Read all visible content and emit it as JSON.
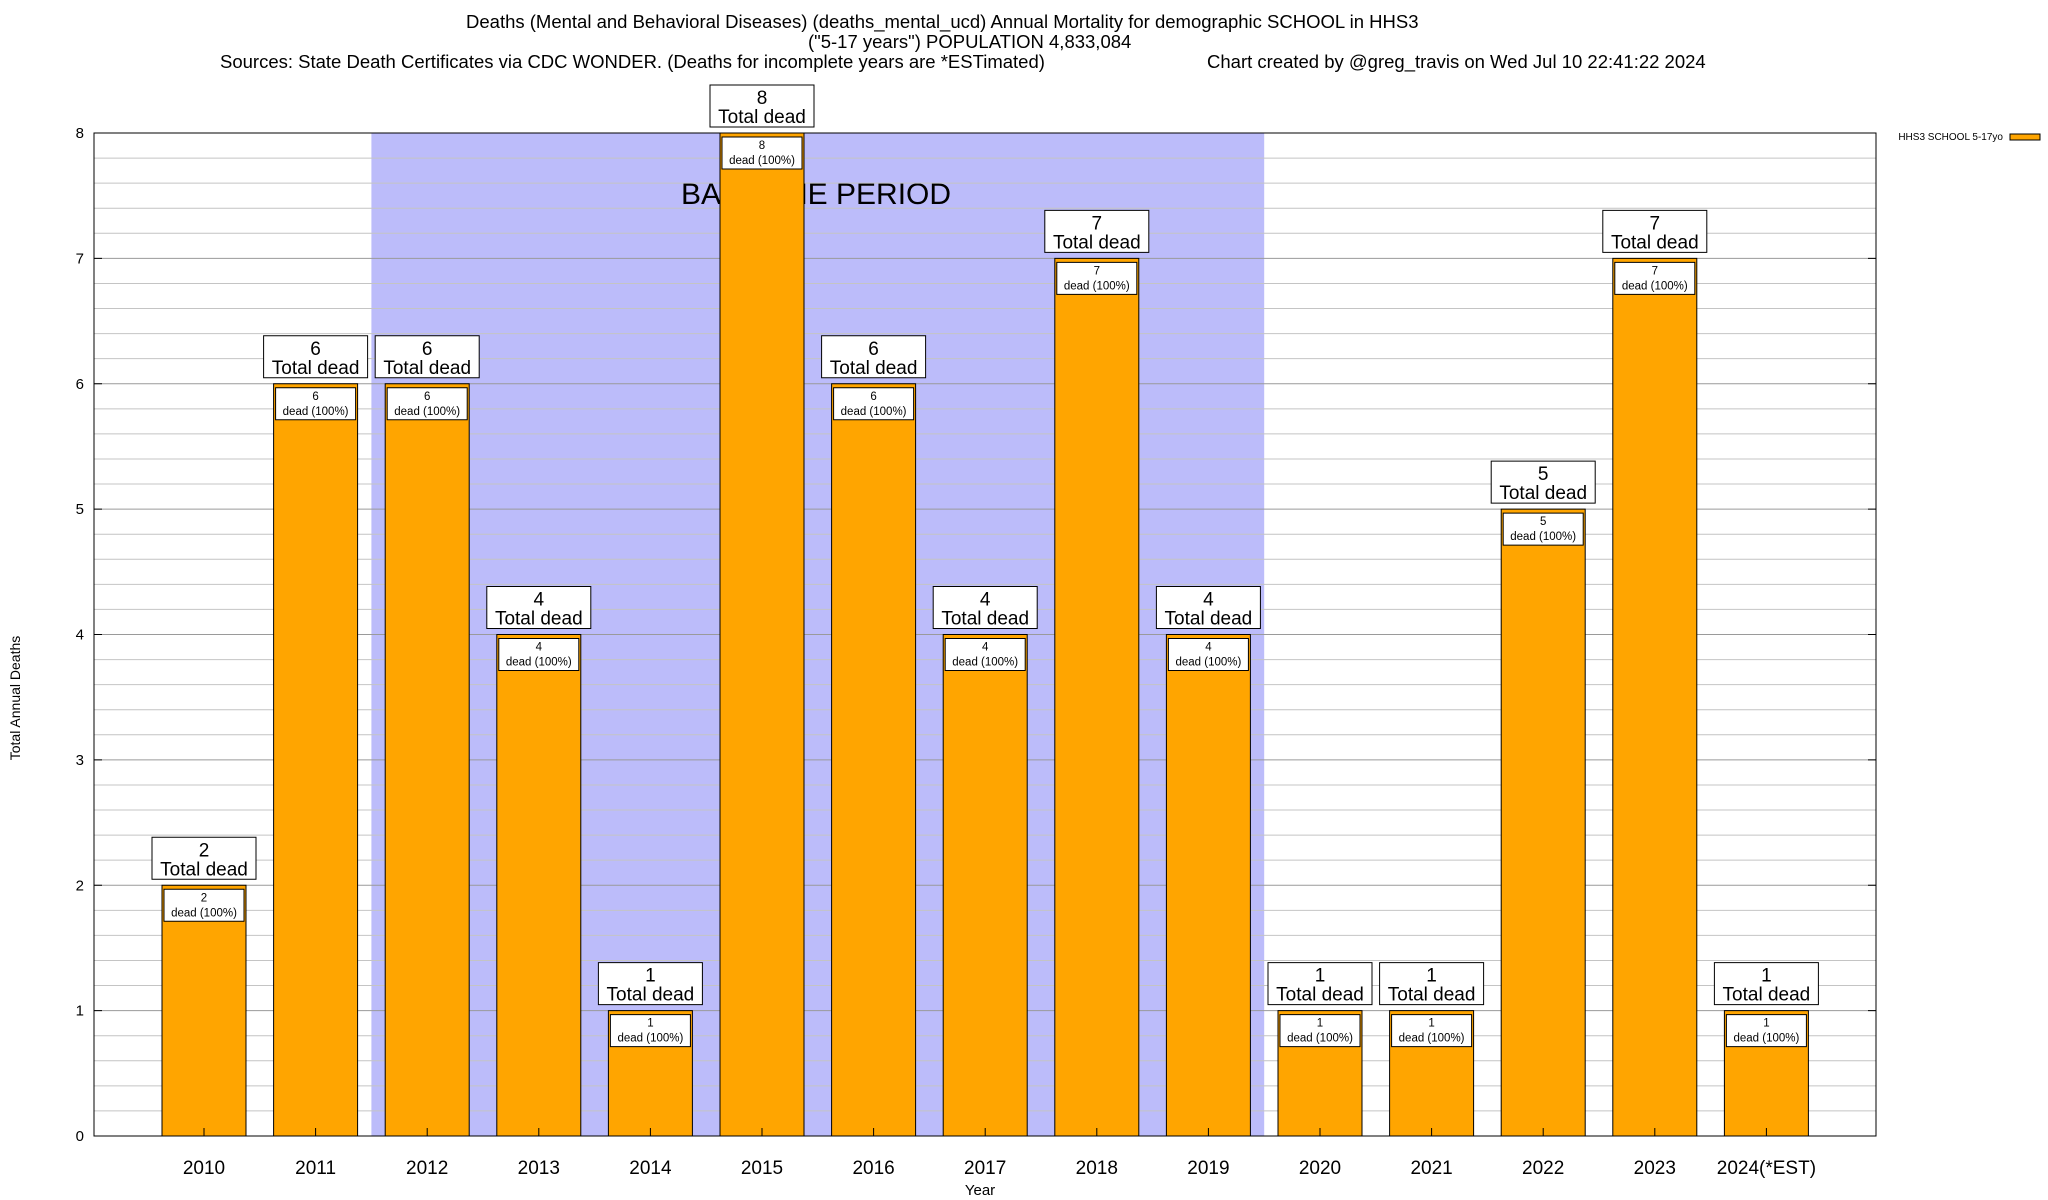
{
  "header": {
    "title_line1": "Deaths (Mental and Behavioral Diseases) (deaths_mental_ucd) Annual Mortality for demographic SCHOOL in HHS3",
    "title_line2": "(\"5-17 years\") POPULATION 4,833,084",
    "sources": "Sources: State Death Certificates via CDC WONDER. (Deaths for incomplete years are *ESTimated)",
    "credit": "Chart created by @greg_travis on Wed Jul 10 22:41:22 2024"
  },
  "chart_data": {
    "type": "bar",
    "xlabel": "Year",
    "ylabel": "Total Annual Deaths",
    "ylim": [
      0,
      8
    ],
    "yticks": [
      0,
      1,
      2,
      3,
      4,
      5,
      6,
      7,
      8
    ],
    "minor_grid_step": 0.2,
    "categories": [
      "2010",
      "2011",
      "2012",
      "2013",
      "2014",
      "2015",
      "2016",
      "2017",
      "2018",
      "2019",
      "2020",
      "2021",
      "2022",
      "2023",
      "2024(*EST)"
    ],
    "series": [
      {
        "name": "HHS3 SCHOOL 5-17yo",
        "color": "#FFA500",
        "values": [
          2,
          6,
          6,
          4,
          1,
          8,
          6,
          4,
          7,
          4,
          1,
          1,
          5,
          7,
          1
        ]
      }
    ],
    "total_label_suffix": "Total dead",
    "inner_label_suffix": "dead (100%)",
    "baseline_period": {
      "label": "BASELINE PERIOD",
      "from": "2012",
      "to": "2019",
      "color": "#bcbcfa"
    },
    "legend_position": "top-right",
    "grid": true
  }
}
